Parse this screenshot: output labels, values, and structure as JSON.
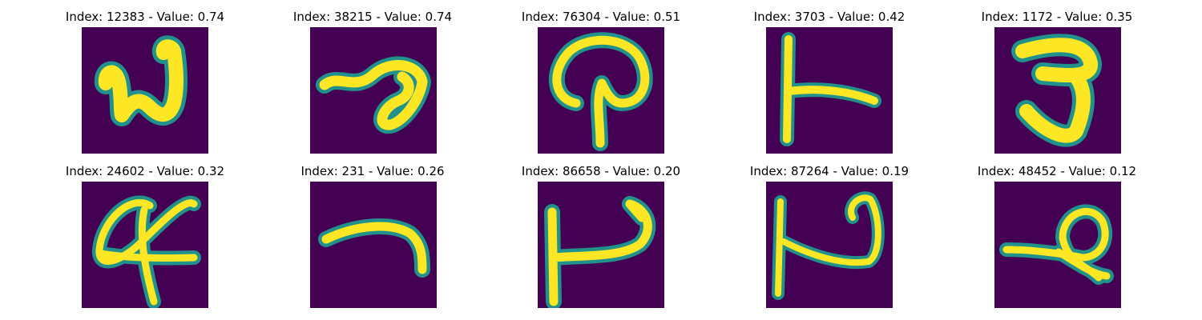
{
  "panels": [
    {
      "title": "Index: 12383 - Value: 0.74",
      "glyph": "n-zigzag"
    },
    {
      "title": "Index: 38215 - Value: 0.74",
      "glyph": "loop-stroke"
    },
    {
      "title": "Index: 76304 - Value: 0.51",
      "glyph": "mushroom"
    },
    {
      "title": "Index: 3703 - Value: 0.42",
      "glyph": "vertical-with-arm"
    },
    {
      "title": "Index: 1172 - Value: 0.35",
      "glyph": "hook-zigzag"
    },
    {
      "title": "Index: 24602 - Value: 0.32",
      "glyph": "loop-cross"
    },
    {
      "title": "Index: 231 - Value: 0.26",
      "glyph": "arc"
    },
    {
      "title": "Index: 86658 - Value: 0.20",
      "glyph": "l-hook"
    },
    {
      "title": "Index: 87264 - Value: 0.19",
      "glyph": "bar-hook"
    },
    {
      "title": "Index: 48452 - Value: 0.12",
      "glyph": "loop-tail"
    }
  ],
  "colors": {
    "background": "#440154",
    "stroke_core": "#fde725",
    "stroke_edge": "#35b779",
    "stroke_halo": "#21918c"
  }
}
